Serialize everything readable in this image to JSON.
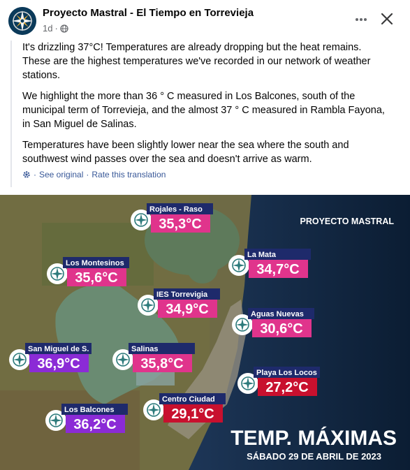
{
  "post": {
    "page_name": "Proyecto Mastral - El Tiempo en Torrevieja",
    "time": "1d",
    "separator": "·",
    "paragraphs": [
      "It's drizzling 37°C! Temperatures are already dropping but the heat remains. These are the highest temperatures we've recorded in our network of weather stations.",
      "We highlight the more than 36 ° C measured in Los Balcones, south of the municipal term of Torrevieja, and the almost 37 ° C measured in Rambla Fayona, in San Miguel de Salinas.",
      "Temperatures have been slightly lower near the sea where the south and southwest wind passes over the sea and doesn't arrive as warm."
    ],
    "see_original": "See original",
    "rate_translation": "Rate this translation",
    "link_separator": "·"
  },
  "image": {
    "brand": "PROYECTO MASTRAL",
    "headline": "TEMP. MÁXIMAS",
    "date": "SÁBADO 29 DE ABRIL DE 2023",
    "stations": [
      {
        "name": "Rojales - Raso",
        "temp": "35,3°C",
        "color": "#e0348c"
      },
      {
        "name": "La Mata",
        "temp": "34,7°C",
        "color": "#e0348c"
      },
      {
        "name": "Los Montesinos",
        "temp": "35,6°C",
        "color": "#e0348c"
      },
      {
        "name": "IES Torrevigia",
        "temp": "34,9°C",
        "color": "#e0348c"
      },
      {
        "name": "Aguas Nuevas",
        "temp": "30,6°C",
        "color": "#e0348c"
      },
      {
        "name": "San Miguel de S.",
        "temp": "36,9°C",
        "color": "#8b2bd6"
      },
      {
        "name": "Salinas",
        "temp": "35,8°C",
        "color": "#e0348c"
      },
      {
        "name": "Playa Los Locos",
        "temp": "27,2°C",
        "color": "#c8102e"
      },
      {
        "name": "Centro Ciudad",
        "temp": "29,1°C",
        "color": "#c8102e"
      },
      {
        "name": "Los Balcones",
        "temp": "36,2°C",
        "color": "#8b2bd6"
      }
    ]
  },
  "icons": {
    "avatar": "compass-logo-icon",
    "privacy": "globe-icon",
    "more": "more-horizontal-icon",
    "close": "close-icon",
    "translation": "gear-icon"
  }
}
